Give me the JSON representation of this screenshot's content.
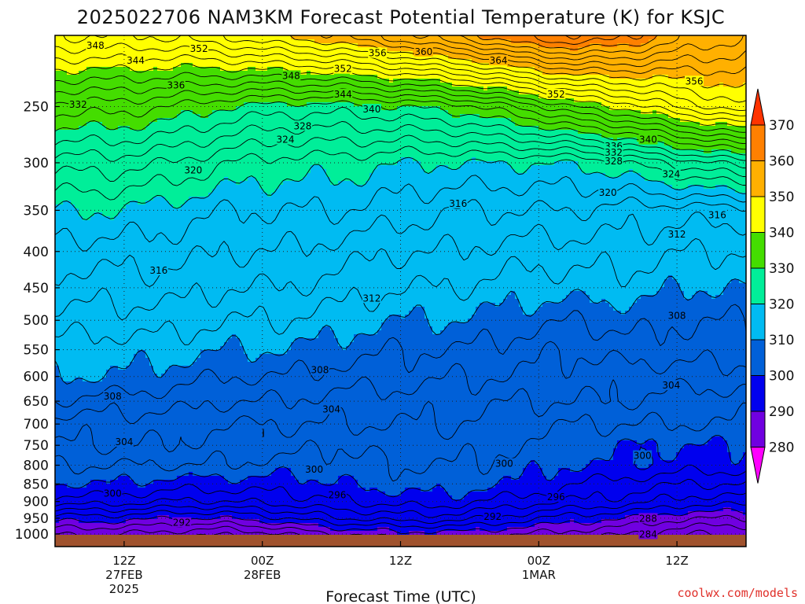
{
  "title": "2025022706 NAM3KM Forecast Potential Temperature (K) for KSJC",
  "credit": "coolwx.com/models",
  "chart_data": {
    "type": "heatmap",
    "subtype": "time-pressure cross-section contour",
    "title": "2025022706 NAM3KM Forecast Potential Temperature (K) for KSJC",
    "xlabel": "Forecast Time (UTC)",
    "ylabel": "",
    "x_unit": "forecast hour from 2025-02-27 06Z",
    "x_range_hours": [
      0,
      60
    ],
    "y_scale": "log-pressure",
    "y_range_hPa": [
      1000,
      200
    ],
    "x_ticks": [
      {
        "hour": 6,
        "lines": [
          "12Z",
          "27FEB",
          "2025"
        ]
      },
      {
        "hour": 18,
        "lines": [
          "00Z",
          "28FEB"
        ]
      },
      {
        "hour": 30,
        "lines": [
          "12Z"
        ]
      },
      {
        "hour": 42,
        "lines": [
          "00Z",
          "1MAR"
        ]
      },
      {
        "hour": 54,
        "lines": [
          "12Z"
        ]
      }
    ],
    "y_ticks": [
      "250",
      "300",
      "350",
      "400",
      "450",
      "500",
      "550",
      "600",
      "650",
      "700",
      "750",
      "800",
      "850",
      "900",
      "950",
      "1000"
    ],
    "y_tick_values": [
      250,
      300,
      350,
      400,
      450,
      500,
      550,
      600,
      650,
      700,
      750,
      800,
      850,
      900,
      950,
      1000
    ],
    "grid": true,
    "colorbar": {
      "labels": [
        "370",
        "360",
        "350",
        "340",
        "330",
        "320",
        "310",
        "300",
        "290",
        "280"
      ],
      "bins": [
        {
          "lo": 360,
          "hi": 370,
          "color": "#ff8000"
        },
        {
          "lo": 350,
          "hi": 360,
          "color": "#ffb000"
        },
        {
          "lo": 340,
          "hi": 350,
          "color": "#ffff00"
        },
        {
          "lo": 330,
          "hi": 340,
          "color": "#44dd00"
        },
        {
          "lo": 320,
          "hi": 330,
          "color": "#00ee99"
        },
        {
          "lo": 310,
          "hi": 320,
          "color": "#00bbf2"
        },
        {
          "lo": 300,
          "hi": 310,
          "color": "#0060d8"
        },
        {
          "lo": 290,
          "hi": 300,
          "color": "#0000ee"
        },
        {
          "lo": 280,
          "hi": 290,
          "color": "#7000e0"
        }
      ],
      "top_arrow_color": "#ff3300",
      "bottom_arrow_color": "#ff00ff"
    },
    "ground_color": "#a0522d",
    "profile_theta_K": [
      {
        "p": 1000,
        "theta": [
          286,
          286,
          285,
          284,
          286,
          288,
          289,
          289,
          288,
          287,
          286,
          284,
          284
        ]
      },
      {
        "p": 950,
        "theta": [
          291,
          291,
          290,
          290,
          292,
          294,
          295,
          295,
          293,
          291,
          290,
          288,
          288
        ]
      },
      {
        "p": 900,
        "theta": [
          297,
          297,
          296,
          296,
          297,
          298,
          299,
          299,
          297,
          296,
          295,
          293,
          293
        ]
      },
      {
        "p": 850,
        "theta": [
          300,
          300,
          299,
          299,
          299,
          300,
          301,
          301,
          300,
          298,
          297,
          296,
          296
        ]
      },
      {
        "p": 800,
        "theta": [
          302,
          302,
          302,
          302,
          301,
          301,
          302,
          302,
          301,
          300,
          300,
          299,
          299
        ]
      },
      {
        "p": 750,
        "theta": [
          304,
          304,
          304,
          303,
          303,
          302,
          303,
          303,
          302,
          301,
          300,
          300,
          300
        ]
      },
      {
        "p": 700,
        "theta": [
          305,
          305,
          305,
          304,
          304,
          304,
          304,
          304,
          303,
          302,
          302,
          302,
          302
        ]
      },
      {
        "p": 650,
        "theta": [
          308,
          307,
          307,
          306,
          306,
          305,
          305,
          305,
          304,
          304,
          304,
          303,
          303
        ]
      },
      {
        "p": 600,
        "theta": [
          310,
          310,
          309,
          308,
          308,
          307,
          307,
          306,
          306,
          305,
          305,
          305,
          305
        ]
      },
      {
        "p": 550,
        "theta": [
          311,
          311,
          311,
          310,
          310,
          309,
          308,
          308,
          307,
          306,
          307,
          307,
          307
        ]
      },
      {
        "p": 500,
        "theta": [
          313,
          313,
          313,
          312,
          312,
          311,
          310,
          310,
          309,
          308,
          309,
          308,
          308
        ]
      },
      {
        "p": 450,
        "theta": [
          315,
          315,
          315,
          314,
          314,
          313,
          312,
          312,
          311,
          311,
          311,
          310,
          310
        ]
      },
      {
        "p": 400,
        "theta": [
          317,
          317,
          317,
          316,
          316,
          315,
          314,
          314,
          313,
          313,
          313,
          312,
          312
        ]
      },
      {
        "p": 350,
        "theta": [
          320,
          320,
          319,
          318,
          318,
          318,
          317,
          316,
          316,
          316,
          315,
          315,
          315
        ]
      },
      {
        "p": 300,
        "theta": [
          325,
          325,
          324,
          322,
          321,
          321,
          320,
          320,
          320,
          320,
          322,
          325,
          327
        ]
      },
      {
        "p": 250,
        "theta": [
          333,
          333,
          332,
          330,
          329,
          329,
          330,
          331,
          334,
          338,
          341,
          345,
          348
        ]
      },
      {
        "p": 200,
        "theta": [
          346,
          346,
          346,
          348,
          350,
          352,
          355,
          358,
          362,
          364,
          362,
          358,
          356
        ]
      }
    ],
    "profile_hours": [
      0,
      5,
      10,
      15,
      20,
      25,
      30,
      35,
      40,
      45,
      50,
      55,
      60
    ],
    "contour_interval_K": 2,
    "contour_labels": [
      {
        "text": "348",
        "hour": 3.5,
        "p": 205
      },
      {
        "text": "352",
        "hour": 12.5,
        "p": 207
      },
      {
        "text": "344",
        "hour": 7,
        "p": 215
      },
      {
        "text": "356",
        "hour": 28,
        "p": 210
      },
      {
        "text": "360",
        "hour": 32,
        "p": 209
      },
      {
        "text": "364",
        "hour": 38.5,
        "p": 215
      },
      {
        "text": "352",
        "hour": 25,
        "p": 221
      },
      {
        "text": "348",
        "hour": 20.5,
        "p": 226
      },
      {
        "text": "336",
        "hour": 10.5,
        "p": 233
      },
      {
        "text": "344",
        "hour": 25,
        "p": 240
      },
      {
        "text": "356",
        "hour": 55.5,
        "p": 230
      },
      {
        "text": "352",
        "hour": 43.5,
        "p": 240
      },
      {
        "text": "332",
        "hour": 2,
        "p": 248
      },
      {
        "text": "340",
        "hour": 27.5,
        "p": 252
      },
      {
        "text": "328",
        "hour": 21.5,
        "p": 266
      },
      {
        "text": "324",
        "hour": 20,
        "p": 278
      },
      {
        "text": "340",
        "hour": 51.5,
        "p": 278
      },
      {
        "text": "336",
        "hour": 48.5,
        "p": 284
      },
      {
        "text": "332",
        "hour": 48.5,
        "p": 290
      },
      {
        "text": "328",
        "hour": 48.5,
        "p": 298
      },
      {
        "text": "320",
        "hour": 12,
        "p": 307
      },
      {
        "text": "324",
        "hour": 53.5,
        "p": 311
      },
      {
        "text": "320",
        "hour": 48,
        "p": 330
      },
      {
        "text": "316",
        "hour": 35,
        "p": 342
      },
      {
        "text": "316",
        "hour": 57.5,
        "p": 355
      },
      {
        "text": "312",
        "hour": 54,
        "p": 378
      },
      {
        "text": "316",
        "hour": 9,
        "p": 425
      },
      {
        "text": "312",
        "hour": 27.5,
        "p": 465
      },
      {
        "text": "308",
        "hour": 54,
        "p": 492
      },
      {
        "text": "308",
        "hour": 23,
        "p": 587
      },
      {
        "text": "304",
        "hour": 53.5,
        "p": 617
      },
      {
        "text": "308",
        "hour": 5,
        "p": 639
      },
      {
        "text": "304",
        "hour": 24,
        "p": 667
      },
      {
        "text": "304",
        "hour": 6,
        "p": 741
      },
      {
        "text": "300",
        "hour": 39,
        "p": 795
      },
      {
        "text": "300",
        "hour": 51,
        "p": 775
      },
      {
        "text": "300",
        "hour": 22.5,
        "p": 810
      },
      {
        "text": "300",
        "hour": 5,
        "p": 876
      },
      {
        "text": "296",
        "hour": 24.5,
        "p": 880
      },
      {
        "text": "296",
        "hour": 43.5,
        "p": 886
      },
      {
        "text": "292",
        "hour": 38,
        "p": 944
      },
      {
        "text": "292",
        "hour": 11,
        "p": 963
      },
      {
        "text": "288",
        "hour": 51.5,
        "p": 950
      },
      {
        "text": "284",
        "hour": 51.5,
        "p": 1000
      }
    ]
  }
}
